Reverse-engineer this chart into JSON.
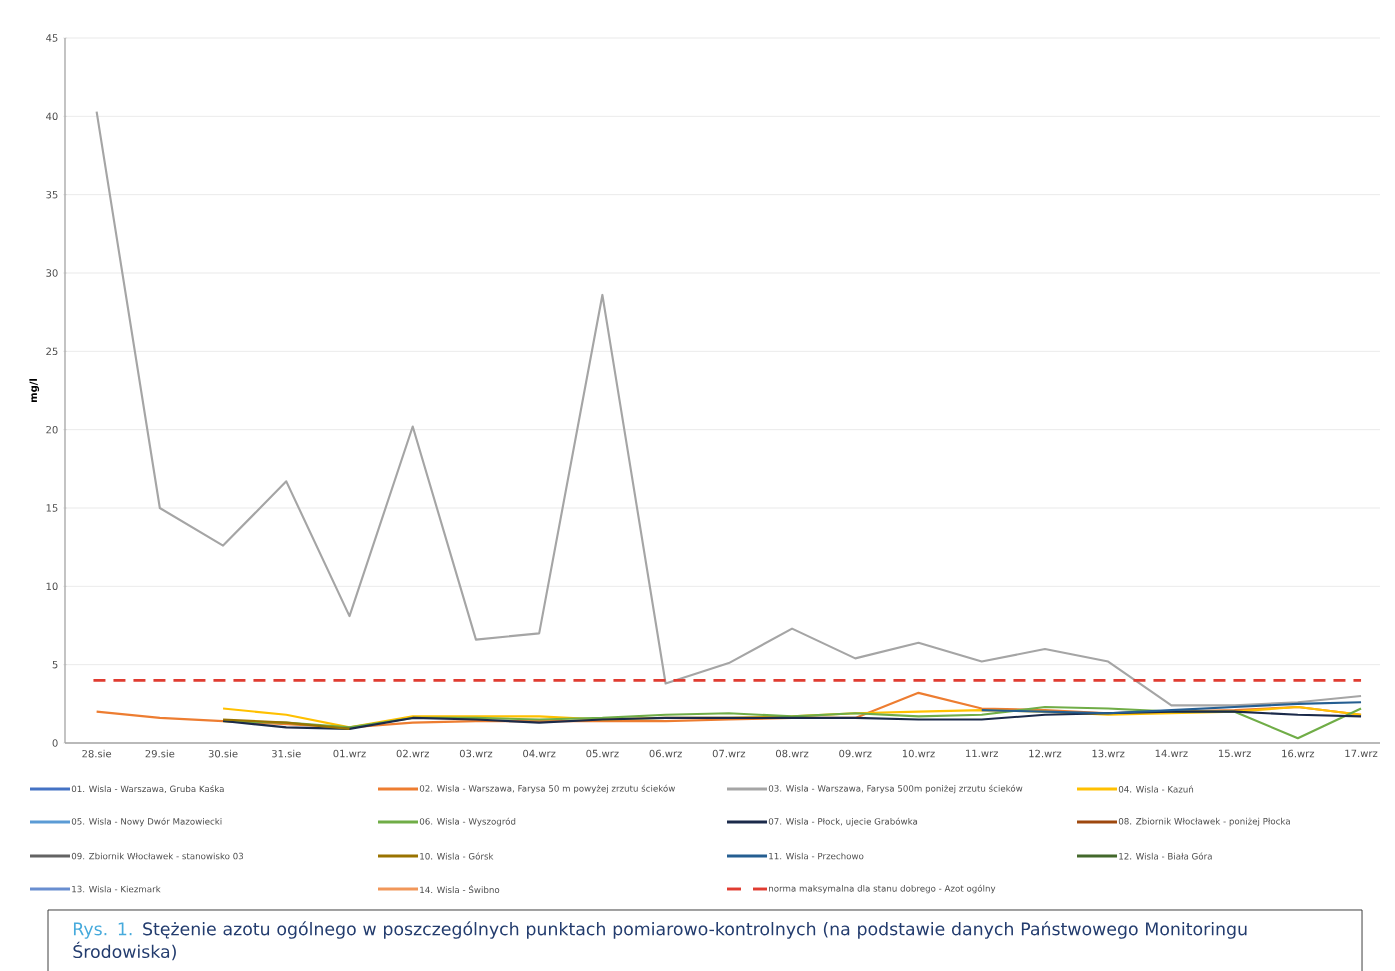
{
  "chart_data": {
    "type": "line",
    "ylabel": "mg/l",
    "categories": [
      "28.sie",
      "29.sie",
      "30.sie",
      "31.sie",
      "01.wrz",
      "02.wrz",
      "03.wrz",
      "04.wrz",
      "05.wrz",
      "06.wrz",
      "07.wrz",
      "08.wrz",
      "09.wrz",
      "10.wrz",
      "11.wrz",
      "12.wrz",
      "13.wrz",
      "14.wrz",
      "15.wrz",
      "16.wrz",
      "17.wrz"
    ],
    "series": [
      {
        "name": "01. Wisla - Warszawa, Gruba Kaśka",
        "color": "#4472c4",
        "values": [
          null,
          null,
          null,
          null,
          null,
          null,
          null,
          null,
          null,
          null,
          null,
          null,
          null,
          null,
          null,
          null,
          null,
          null,
          null,
          null,
          null
        ]
      },
      {
        "name": "02. Wisla - Warszawa, Farysa 50 m powyżej zrzutu ścieków",
        "color": "#ed7d31",
        "values": [
          2.0,
          1.6,
          1.4,
          1.2,
          1.0,
          1.3,
          1.4,
          1.4,
          1.4,
          1.4,
          1.5,
          1.6,
          1.6,
          3.2,
          2.2,
          2.1,
          1.9,
          2.0,
          2.1,
          2.3,
          1.8
        ]
      },
      {
        "name": "03. Wisla - Warszawa, Farysa 500m poniżej zrzutu ścieków",
        "color": "#a5a5a5",
        "values": [
          40.3,
          15.0,
          12.6,
          16.7,
          8.1,
          20.2,
          6.6,
          7.0,
          28.6,
          3.8,
          5.1,
          7.3,
          5.4,
          6.4,
          5.2,
          6.0,
          5.2,
          2.4,
          2.4,
          2.6,
          3.0
        ]
      },
      {
        "name": "04. Wisla - Kazuń",
        "color": "#ffc000",
        "values": [
          null,
          null,
          2.2,
          1.8,
          1.0,
          1.7,
          1.7,
          1.7,
          1.5,
          1.6,
          1.6,
          1.7,
          1.9,
          2.0,
          2.1,
          2.0,
          1.8,
          1.9,
          2.0,
          2.3,
          1.8
        ]
      },
      {
        "name": "05. Wisla - Nowy Dwór Mazowiecki",
        "color": "#5b9bd5",
        "values": [
          null,
          null,
          null,
          null,
          null,
          null,
          null,
          null,
          null,
          null,
          null,
          null,
          null,
          null,
          null,
          null,
          null,
          null,
          null,
          null,
          null
        ]
      },
      {
        "name": "06. Wisla - Wyszogród",
        "color": "#70ad47",
        "values": [
          null,
          null,
          1.4,
          1.3,
          1.0,
          1.6,
          1.6,
          1.5,
          1.6,
          1.8,
          1.9,
          1.7,
          1.9,
          1.7,
          1.8,
          2.3,
          2.2,
          2.0,
          2.0,
          0.3,
          2.2
        ]
      },
      {
        "name": "07. Wisla - Płock, ujecie Grabówka",
        "color": "#1b2a4a",
        "values": [
          null,
          null,
          1.4,
          1.0,
          0.9,
          1.6,
          1.5,
          1.3,
          1.5,
          1.6,
          1.6,
          1.6,
          1.6,
          1.5,
          1.5,
          1.8,
          1.9,
          2.0,
          2.0,
          1.8,
          1.7
        ]
      },
      {
        "name": "08. Zbiornik Włocławek - poniżej Płocka",
        "color": "#9e480e",
        "values": [
          null,
          null,
          null,
          null,
          null,
          null,
          null,
          null,
          null,
          null,
          null,
          null,
          null,
          null,
          null,
          null,
          null,
          null,
          null,
          null,
          null
        ]
      },
      {
        "name": "09. Zbiornik Włocławek - stanowisko 03",
        "color": "#636363",
        "values": [
          null,
          null,
          null,
          null,
          null,
          null,
          null,
          null,
          null,
          null,
          null,
          null,
          null,
          null,
          null,
          null,
          null,
          null,
          null,
          null,
          null
        ]
      },
      {
        "name": "10. Wisla - Górsk",
        "color": "#997300",
        "values": [
          null,
          null,
          1.5,
          1.3,
          0.9,
          null,
          null,
          null,
          null,
          null,
          null,
          null,
          null,
          null,
          null,
          null,
          null,
          null,
          null,
          null,
          null
        ]
      },
      {
        "name": "11. Wisla - Przechowo",
        "color": "#255e91",
        "values": [
          null,
          null,
          null,
          null,
          null,
          null,
          null,
          null,
          null,
          null,
          null,
          null,
          null,
          null,
          2.1,
          2.0,
          1.9,
          2.1,
          2.3,
          2.5,
          2.6
        ]
      },
      {
        "name": "12. Wisla - Biała Góra",
        "color": "#43682b",
        "values": [
          null,
          null,
          null,
          null,
          null,
          null,
          null,
          null,
          null,
          null,
          null,
          null,
          null,
          null,
          null,
          null,
          null,
          null,
          null,
          null,
          null
        ]
      },
      {
        "name": "13. Wisla - Kiezmark",
        "color": "#698ed0",
        "values": [
          null,
          null,
          null,
          null,
          null,
          null,
          null,
          null,
          null,
          null,
          null,
          null,
          null,
          null,
          null,
          null,
          null,
          null,
          null,
          null,
          null
        ]
      },
      {
        "name": "14. Wisla - Świbno",
        "color": "#f1975a",
        "values": [
          null,
          null,
          null,
          null,
          null,
          null,
          null,
          null,
          null,
          null,
          null,
          null,
          null,
          null,
          null,
          null,
          null,
          null,
          null,
          null,
          null
        ]
      }
    ],
    "ref_lines": [
      {
        "axis": "y",
        "value": 4.0,
        "label": "norma maksymalna dla stanu dobrego - Azot ogólny",
        "color": "#e03c31",
        "line_style": "dashed"
      }
    ],
    "ylim": [
      0,
      45
    ],
    "yticks": [
      0,
      5,
      10,
      15,
      20,
      25,
      30,
      35,
      40,
      45
    ],
    "grid": "y",
    "legend": "bottom",
    "annotations": [
      "Rys. 1.",
      "Stężenie azotu ogólnego w poszczególnych punktach pomiarowo-kontrolnych (na podstawie danych Państwowego Monitoringu Środowiska)"
    ]
  }
}
